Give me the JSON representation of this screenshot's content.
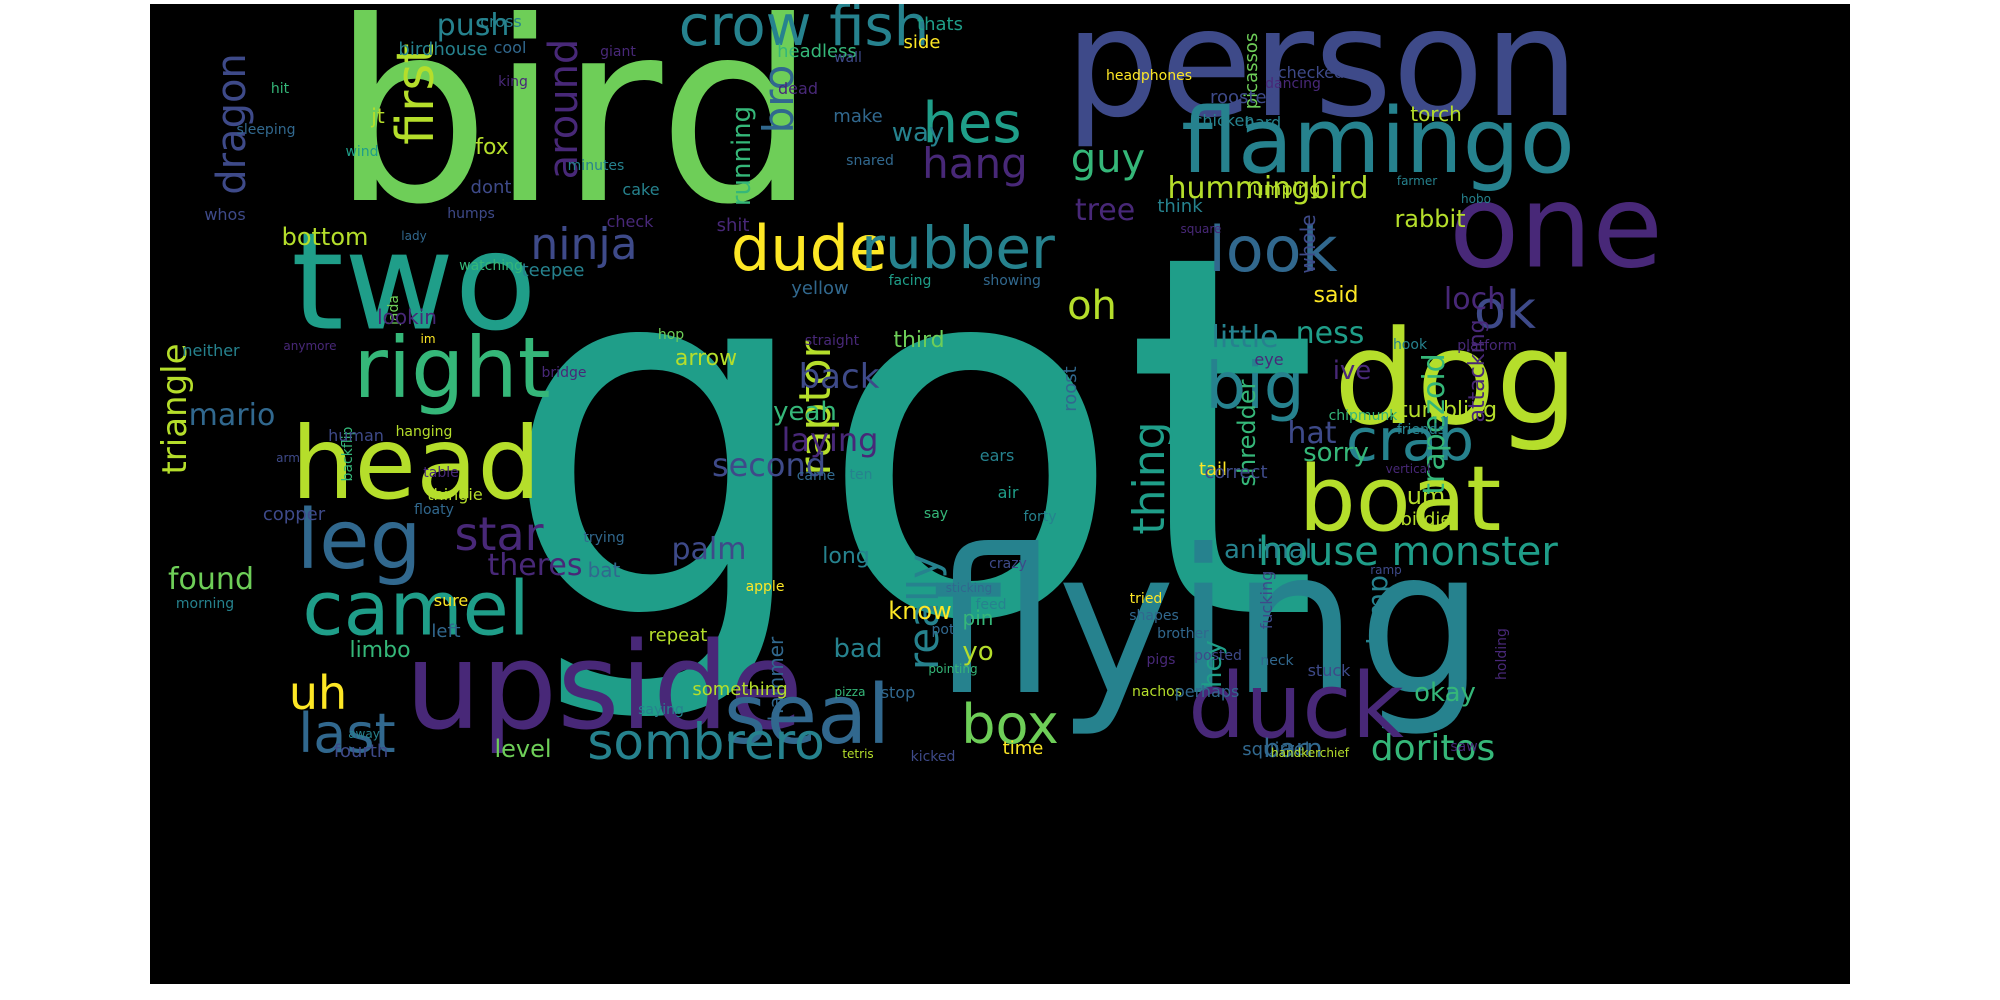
{
  "palette": {
    "background": "#000000",
    "viridis": [
      "#440154",
      "#482878",
      "#3e4a89",
      "#31688e",
      "#26828e",
      "#1f9e89",
      "#35b779",
      "#6ece58",
      "#b5de2b",
      "#fde725"
    ]
  },
  "words": [
    {
      "text": "got",
      "h": false,
      "c": "#1f9e89"
    },
    {
      "text": "bird",
      "h": false,
      "c": "#6ece58"
    },
    {
      "text": "flying",
      "h": false,
      "c": "#26828e"
    },
    {
      "text": "person",
      "h": false,
      "c": "#3e4a89"
    },
    {
      "text": "two",
      "h": false,
      "c": "#1f9e89"
    },
    {
      "text": "dog",
      "h": false,
      "c": "#b5de2b"
    },
    {
      "text": "one",
      "h": false,
      "c": "#482878"
    },
    {
      "text": "upside",
      "h": false,
      "c": "#482878"
    },
    {
      "text": "flamingo",
      "h": false,
      "c": "#26828e"
    },
    {
      "text": "head",
      "h": false,
      "c": "#b5de2b"
    },
    {
      "text": "boat",
      "h": false,
      "c": "#b5de2b"
    },
    {
      "text": "seal",
      "h": false,
      "c": "#31688e"
    },
    {
      "text": "duck",
      "h": false,
      "c": "#482878"
    },
    {
      "text": "right",
      "h": false,
      "c": "#35b779"
    },
    {
      "text": "leg",
      "h": false,
      "c": "#31688e"
    },
    {
      "text": "camel",
      "h": false,
      "c": "#1f9e89"
    },
    {
      "text": "crow fish",
      "h": false,
      "c": "#26828e"
    },
    {
      "text": "dude",
      "h": false,
      "c": "#fde725"
    },
    {
      "text": "rubber",
      "h": false,
      "c": "#26828e"
    },
    {
      "text": "look",
      "h": false,
      "c": "#31688e"
    },
    {
      "text": "big",
      "h": false,
      "c": "#26828e"
    },
    {
      "text": "crab",
      "h": false,
      "c": "#26828e"
    },
    {
      "text": "hes",
      "h": false,
      "c": "#1f9e89"
    },
    {
      "text": "hang",
      "h": false,
      "c": "#482878"
    },
    {
      "text": "ok",
      "h": false,
      "c": "#3e4a89"
    },
    {
      "text": "box",
      "h": false,
      "c": "#6ece58"
    },
    {
      "text": "last",
      "h": false,
      "c": "#31688e"
    },
    {
      "text": "sombrero",
      "h": false,
      "c": "#26828e"
    },
    {
      "text": "uh",
      "h": false,
      "c": "#fde725"
    },
    {
      "text": "star",
      "h": false,
      "c": "#482878"
    },
    {
      "text": "ninja",
      "h": false,
      "c": "#3e4a89"
    },
    {
      "text": "guy",
      "h": false,
      "c": "#35b779"
    },
    {
      "text": "oh",
      "h": false,
      "c": "#b5de2b"
    },
    {
      "text": "first",
      "h": true,
      "c": "#b5de2b"
    },
    {
      "text": "dragon",
      "h": true,
      "c": "#3e4a89"
    },
    {
      "text": "around",
      "h": true,
      "c": "#482878"
    },
    {
      "text": "bro",
      "h": true,
      "c": "#31688e"
    },
    {
      "text": "raptor",
      "h": true,
      "c": "#b5de2b"
    },
    {
      "text": "really",
      "h": true,
      "c": "#26828e"
    },
    {
      "text": "thing",
      "h": true,
      "c": "#1f9e89"
    },
    {
      "text": "house monster",
      "h": false,
      "c": "#1f9e89"
    },
    {
      "text": "doritos",
      "h": false,
      "c": "#35b779"
    },
    {
      "text": "hummingbird",
      "h": false,
      "c": "#b5de2b"
    },
    {
      "text": "loch",
      "h": false,
      "c": "#482878"
    },
    {
      "text": "ness",
      "h": false,
      "c": "#1f9e89"
    },
    {
      "text": "back",
      "h": false,
      "c": "#3e4a89"
    },
    {
      "text": "yeah",
      "h": false,
      "c": "#35b779"
    },
    {
      "text": "laying",
      "h": false,
      "c": "#482878"
    },
    {
      "text": "second",
      "h": false,
      "c": "#3e4a89"
    },
    {
      "text": "palm",
      "h": false,
      "c": "#3e4a89"
    },
    {
      "text": "theres",
      "h": false,
      "c": "#482878"
    },
    {
      "text": "found",
      "h": false,
      "c": "#6ece58"
    },
    {
      "text": "mario",
      "h": false,
      "c": "#31688e"
    },
    {
      "text": "tree",
      "h": false,
      "c": "#482878"
    },
    {
      "text": "push",
      "h": false,
      "c": "#26828e"
    },
    {
      "text": "hat",
      "h": false,
      "c": "#3e4a89"
    },
    {
      "text": "sorry",
      "h": false,
      "c": "#35b779"
    },
    {
      "text": "little",
      "h": false,
      "c": "#26828e"
    },
    {
      "text": "animal",
      "h": false,
      "c": "#26828e"
    },
    {
      "text": "okay",
      "h": false,
      "c": "#35b779"
    },
    {
      "text": "level",
      "h": false,
      "c": "#6ece58"
    },
    {
      "text": "bottom",
      "h": false,
      "c": "#b5de2b"
    },
    {
      "text": "ive",
      "h": false,
      "c": "#482878"
    },
    {
      "text": "um",
      "h": false,
      "c": "#b5de2b"
    },
    {
      "text": "way",
      "h": false,
      "c": "#26828e"
    },
    {
      "text": "know",
      "h": false,
      "c": "#fde725"
    },
    {
      "text": "bad",
      "h": false,
      "c": "#26828e"
    },
    {
      "text": "yo",
      "h": false,
      "c": "#b5de2b"
    },
    {
      "text": "barn",
      "h": false,
      "c": "#31688e"
    },
    {
      "text": "said",
      "h": false,
      "c": "#fde725"
    },
    {
      "text": "rabbit",
      "h": false,
      "c": "#b5de2b"
    },
    {
      "text": "tumbling",
      "h": false,
      "c": "#b5de2b"
    },
    {
      "text": "arrow",
      "h": false,
      "c": "#b5de2b"
    },
    {
      "text": "fox",
      "h": false,
      "c": "#b5de2b"
    },
    {
      "text": "triangle",
      "h": true,
      "c": "#b5de2b"
    },
    {
      "text": "trapezoid",
      "h": true,
      "c": "#35b779"
    },
    {
      "text": "lamp",
      "h": true,
      "c": "#26828e"
    },
    {
      "text": "hey",
      "h": true,
      "c": "#1f9e89"
    },
    {
      "text": "running",
      "h": true,
      "c": "#35b779"
    },
    {
      "text": "shredder",
      "h": true,
      "c": "#35b779"
    },
    {
      "text": "attacking",
      "h": true,
      "c": "#482878"
    },
    {
      "text": "whole",
      "h": true,
      "c": "#3e4a89"
    },
    {
      "text": "roost",
      "h": true,
      "c": "#31688e"
    },
    {
      "text": "hammer",
      "h": true,
      "c": "#31688e"
    },
    {
      "text": "picassos",
      "h": true,
      "c": "#6ece58"
    },
    {
      "text": "fucking",
      "h": true,
      "c": "#3e4a89"
    },
    {
      "text": "backflip",
      "h": true,
      "c": "#35b779"
    },
    {
      "text": "jada",
      "h": true,
      "c": "#6ece58"
    },
    {
      "text": "birdhouse",
      "h": false,
      "c": "#26828e"
    },
    {
      "text": "headless",
      "h": false,
      "c": "#35b779"
    },
    {
      "text": "thats",
      "h": false,
      "c": "#1f9e89"
    },
    {
      "text": "side",
      "h": false,
      "c": "#fde725"
    },
    {
      "text": "cross",
      "h": false,
      "c": "#26828e"
    },
    {
      "text": "cool",
      "h": false,
      "c": "#31688e"
    },
    {
      "text": "giant",
      "h": false,
      "c": "#482878"
    },
    {
      "text": "wall",
      "h": false,
      "c": "#3e4a89"
    },
    {
      "text": "dead",
      "h": false,
      "c": "#482878"
    },
    {
      "text": "king",
      "h": false,
      "c": "#482878"
    },
    {
      "text": "make",
      "h": false,
      "c": "#31688e"
    },
    {
      "text": "hit",
      "h": false,
      "c": "#35b779"
    },
    {
      "text": "sleeping",
      "h": false,
      "c": "#31688e"
    },
    {
      "text": "jt",
      "h": false,
      "c": "#b5de2b"
    },
    {
      "text": "wind",
      "h": false,
      "c": "#1f9e89"
    },
    {
      "text": "minutes",
      "h": false,
      "c": "#26828e"
    },
    {
      "text": "snared",
      "h": false,
      "c": "#31688e"
    },
    {
      "text": "dont",
      "h": false,
      "c": "#3e4a89"
    },
    {
      "text": "cake",
      "h": false,
      "c": "#26828e"
    },
    {
      "text": "humps",
      "h": false,
      "c": "#3e4a89"
    },
    {
      "text": "whos",
      "h": false,
      "c": "#3e4a89"
    },
    {
      "text": "lady",
      "h": false,
      "c": "#31688e"
    },
    {
      "text": "check",
      "h": false,
      "c": "#482878"
    },
    {
      "text": "shit",
      "h": false,
      "c": "#482878"
    },
    {
      "text": "teepee",
      "h": false,
      "c": "#26828e"
    },
    {
      "text": "watching",
      "h": false,
      "c": "#35b779"
    },
    {
      "text": "yellow",
      "h": false,
      "c": "#31688e"
    },
    {
      "text": "facing",
      "h": false,
      "c": "#1f9e89"
    },
    {
      "text": "showing",
      "h": false,
      "c": "#31688e"
    },
    {
      "text": "lookin",
      "h": false,
      "c": "#482878"
    },
    {
      "text": "im",
      "h": false,
      "c": "#fde725"
    },
    {
      "text": "anymore",
      "h": false,
      "c": "#482878"
    },
    {
      "text": "neither",
      "h": false,
      "c": "#26828e"
    },
    {
      "text": "hop",
      "h": false,
      "c": "#6ece58"
    },
    {
      "text": "straight",
      "h": false,
      "c": "#482878"
    },
    {
      "text": "third",
      "h": false,
      "c": "#6ece58"
    },
    {
      "text": "bridge",
      "h": false,
      "c": "#482878"
    },
    {
      "text": "human",
      "h": false,
      "c": "#3e4a89"
    },
    {
      "text": "hanging",
      "h": false,
      "c": "#b5de2b"
    },
    {
      "text": "arm",
      "h": false,
      "c": "#3e4a89"
    },
    {
      "text": "table",
      "h": false,
      "c": "#482878"
    },
    {
      "text": "copper",
      "h": false,
      "c": "#3e4a89"
    },
    {
      "text": "thingie",
      "h": false,
      "c": "#b5de2b"
    },
    {
      "text": "floaty",
      "h": false,
      "c": "#31688e"
    },
    {
      "text": "trying",
      "h": false,
      "c": "#31688e"
    },
    {
      "text": "came",
      "h": false,
      "c": "#31688e"
    },
    {
      "text": "ten",
      "h": false,
      "c": "#26828e"
    },
    {
      "text": "ears",
      "h": false,
      "c": "#26828e"
    },
    {
      "text": "air",
      "h": false,
      "c": "#1f9e89"
    },
    {
      "text": "say",
      "h": false,
      "c": "#35b779"
    },
    {
      "text": "forty",
      "h": false,
      "c": "#26828e"
    },
    {
      "text": "tail",
      "h": false,
      "c": "#fde725"
    },
    {
      "text": "correct",
      "h": false,
      "c": "#3e4a89"
    },
    {
      "text": "vertical",
      "h": false,
      "c": "#482878"
    },
    {
      "text": "birdie",
      "h": false,
      "c": "#b5de2b"
    },
    {
      "text": "chipmunk",
      "h": false,
      "c": "#35b779"
    },
    {
      "text": "friends",
      "h": false,
      "c": "#26828e"
    },
    {
      "text": "platform",
      "h": false,
      "c": "#482878"
    },
    {
      "text": "hook",
      "h": false,
      "c": "#26828e"
    },
    {
      "text": "eye",
      "h": false,
      "c": "#482878"
    },
    {
      "text": "hard",
      "h": false,
      "c": "#26828e"
    },
    {
      "text": "rooster",
      "h": false,
      "c": "#3e4a89"
    },
    {
      "text": "torch",
      "h": false,
      "c": "#b5de2b"
    },
    {
      "text": "chicken",
      "h": false,
      "c": "#26828e"
    },
    {
      "text": "jumping",
      "h": false,
      "c": "#b5de2b"
    },
    {
      "text": "think",
      "h": false,
      "c": "#26828e"
    },
    {
      "text": "square",
      "h": false,
      "c": "#482878"
    },
    {
      "text": "farmer",
      "h": false,
      "c": "#26828e"
    },
    {
      "text": "hobo",
      "h": false,
      "c": "#26828e"
    },
    {
      "text": "dancing",
      "h": false,
      "c": "#482878"
    },
    {
      "text": "checked",
      "h": false,
      "c": "#3e4a89"
    },
    {
      "text": "headphones",
      "h": false,
      "c": "#fde725"
    },
    {
      "text": "bat",
      "h": false,
      "c": "#31688e"
    },
    {
      "text": "apple",
      "h": false,
      "c": "#fde725"
    },
    {
      "text": "crazy",
      "h": false,
      "c": "#3e4a89"
    },
    {
      "text": "long",
      "h": false,
      "c": "#26828e"
    },
    {
      "text": "sticking",
      "h": false,
      "c": "#31688e"
    },
    {
      "text": "ramp",
      "h": false,
      "c": "#3e4a89"
    },
    {
      "text": "feed",
      "h": false,
      "c": "#26828e"
    },
    {
      "text": "pin",
      "h": false,
      "c": "#35b779"
    },
    {
      "text": "shapes",
      "h": false,
      "c": "#31688e"
    },
    {
      "text": "tried",
      "h": false,
      "c": "#fde725"
    },
    {
      "text": "sure",
      "h": false,
      "c": "#fde725"
    },
    {
      "text": "left",
      "h": false,
      "c": "#31688e"
    },
    {
      "text": "repeat",
      "h": false,
      "c": "#b5de2b"
    },
    {
      "text": "pot",
      "h": false,
      "c": "#31688e"
    },
    {
      "text": "brother",
      "h": false,
      "c": "#31688e"
    },
    {
      "text": "morning",
      "h": false,
      "c": "#26828e"
    },
    {
      "text": "limbo",
      "h": false,
      "c": "#35b779"
    },
    {
      "text": "pointing",
      "h": false,
      "c": "#35b779"
    },
    {
      "text": "posted",
      "h": false,
      "c": "#3e4a89"
    },
    {
      "text": "pigs",
      "h": false,
      "c": "#482878"
    },
    {
      "text": "neck",
      "h": false,
      "c": "#31688e"
    },
    {
      "text": "stuck",
      "h": false,
      "c": "#3e4a89"
    },
    {
      "text": "holding",
      "h": true,
      "c": "#482878"
    },
    {
      "text": "something",
      "h": false,
      "c": "#b5de2b"
    },
    {
      "text": "pizza",
      "h": false,
      "c": "#35b779"
    },
    {
      "text": "stop",
      "h": false,
      "c": "#31688e"
    },
    {
      "text": "nachos",
      "h": false,
      "c": "#b5de2b"
    },
    {
      "text": "perhaps",
      "h": false,
      "c": "#31688e"
    },
    {
      "text": "saying",
      "h": false,
      "c": "#26828e"
    },
    {
      "text": "away",
      "h": false,
      "c": "#26828e"
    },
    {
      "text": "fourth",
      "h": false,
      "c": "#3e4a89"
    },
    {
      "text": "tetris",
      "h": false,
      "c": "#b5de2b"
    },
    {
      "text": "kicked",
      "h": false,
      "c": "#3e4a89"
    },
    {
      "text": "time",
      "h": false,
      "c": "#fde725"
    },
    {
      "text": "squirrel",
      "h": false,
      "c": "#31688e"
    },
    {
      "text": "handkerchief",
      "h": false,
      "c": "#b5de2b"
    },
    {
      "text": "saw",
      "h": false,
      "c": "#482878"
    },
    {
      "text": "now",
      "h": false,
      "c": "#1f9e89"
    }
  ]
}
